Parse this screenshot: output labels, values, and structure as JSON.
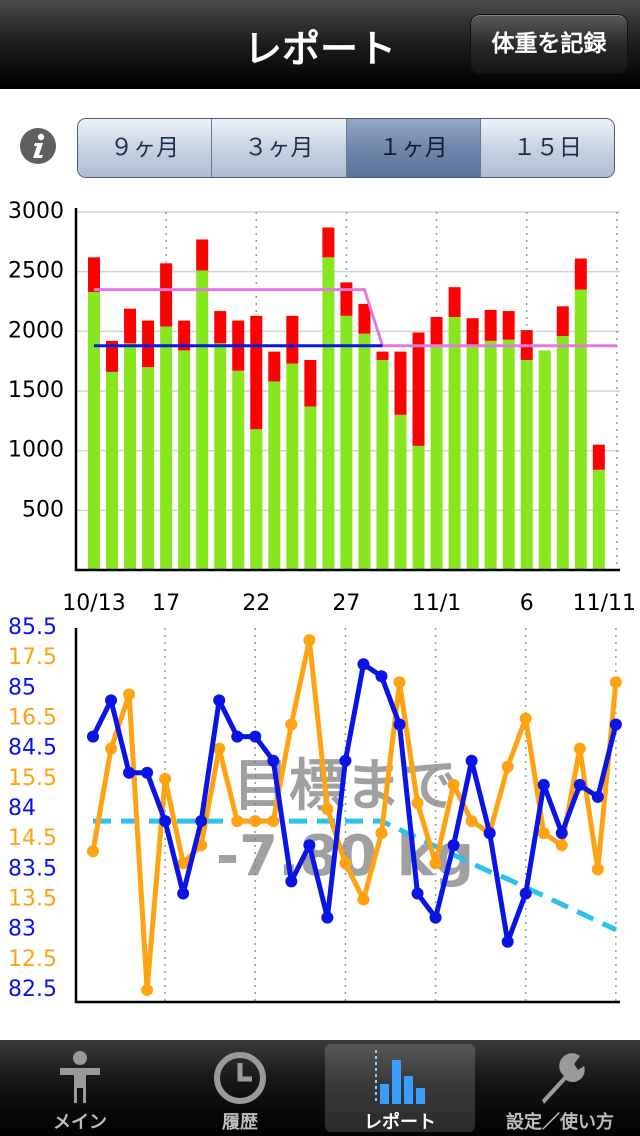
{
  "nav": {
    "title": "レポート",
    "button": "体重を記録"
  },
  "segments": {
    "items": [
      "９ヶ月",
      "３ヶ月",
      "１ヶ月",
      "１５日"
    ],
    "selected": 2
  },
  "tabs": {
    "items": [
      "メイン",
      "履歴",
      "レポート",
      "設定／使い方"
    ],
    "selected": 2
  },
  "chart_data": [
    {
      "type": "bar",
      "stacked": true,
      "categories": [
        "10/13",
        null,
        null,
        null,
        "17",
        null,
        null,
        null,
        null,
        "22",
        null,
        null,
        null,
        null,
        "27",
        null,
        null,
        null,
        null,
        "11/1",
        null,
        null,
        null,
        null,
        "6",
        null,
        null,
        null,
        null,
        "11/11"
      ],
      "series": [
        {
          "color": "#88e61e",
          "type": "bar",
          "values": [
            2330,
            1660,
            1900,
            1700,
            2040,
            1840,
            2510,
            1900,
            1670,
            1180,
            1580,
            1730,
            1370,
            2620,
            2130,
            1980,
            1760,
            1300,
            1040,
            1870,
            2120,
            1870,
            1920,
            1930,
            1760,
            1840,
            1960,
            2350,
            840,
            null
          ]
        },
        {
          "color": "#ff0000",
          "type": "bar",
          "values": [
            290,
            260,
            290,
            390,
            530,
            250,
            260,
            270,
            420,
            950,
            250,
            400,
            390,
            250,
            280,
            250,
            70,
            530,
            950,
            250,
            250,
            240,
            260,
            240,
            250,
            null,
            250,
            260,
            210,
            null
          ]
        },
        {
          "color": "#e27ae0",
          "type": "line",
          "values": [
            2350,
            2350,
            2350,
            2350,
            2350,
            2350,
            2350,
            2350,
            2350,
            2350,
            2350,
            2350,
            2350,
            2350,
            2350,
            2350,
            1880,
            1880,
            1880,
            1880,
            1880,
            1880,
            1880,
            1880,
            1880,
            1880,
            1880,
            1880,
            1880,
            1880
          ]
        },
        {
          "color": "#0a14e6",
          "type": "line",
          "values": [
            1880,
            1880,
            1880,
            1880,
            1880,
            1880,
            1880,
            1880,
            1880,
            1880,
            1880,
            1880,
            1880,
            1880,
            1880,
            1880,
            1880,
            null,
            null,
            null,
            null,
            null,
            null,
            null,
            null,
            null,
            null,
            null,
            null,
            null
          ]
        }
      ],
      "ylim": [
        0,
        3000
      ],
      "yticks": [
        500,
        1000,
        1500,
        2000,
        2500,
        3000
      ],
      "grid": true
    },
    {
      "type": "line",
      "annotations": [
        "目標まで",
        "-7.80 kg"
      ],
      "series": [
        {
          "color": "#29c3ea",
          "axis": "y",
          "dash": true,
          "markers": false,
          "values": [
            83.9,
            83.9,
            83.9,
            83.9,
            83.9,
            83.9,
            83.9,
            83.9,
            83.9,
            83.9,
            83.9,
            83.9,
            83.9,
            83.9,
            83.9,
            83.9,
            83.9,
            83.83,
            83.76,
            83.69,
            83.62,
            83.55,
            83.48,
            83.42,
            83.35,
            83.28,
            83.21,
            83.14,
            83.07,
            83.0
          ]
        },
        {
          "color": "#ffa312",
          "axis": "y2",
          "dash": false,
          "markers": true,
          "values": [
            14.3,
            16.0,
            16.9,
            12.0,
            15.5,
            14.1,
            14.4,
            16.0,
            14.8,
            14.8,
            14.8,
            16.4,
            17.8,
            15.0,
            14.1,
            13.5,
            14.6,
            17.1,
            15.1,
            14.1,
            15.4,
            14.8,
            14.6,
            15.7,
            16.5,
            14.6,
            14.4,
            16.0,
            14.0,
            17.1
          ]
        },
        {
          "color": "#0a14e6",
          "axis": "y",
          "dash": false,
          "markers": true,
          "values": [
            84.6,
            84.9,
            84.3,
            84.3,
            83.9,
            83.3,
            83.9,
            84.9,
            84.6,
            84.6,
            84.4,
            83.4,
            83.7,
            83.1,
            84.4,
            85.2,
            85.1,
            84.7,
            83.3,
            83.1,
            83.7,
            84.4,
            83.8,
            82.9,
            83.3,
            84.2,
            83.8,
            84.2,
            84.1,
            84.7
          ]
        }
      ],
      "ylim": [
        82.5,
        85.5
      ],
      "yticks": [
        82.5,
        83,
        83.5,
        84,
        84.5,
        85,
        85.5
      ],
      "y2lim": [
        12,
        18
      ],
      "y2ticks": [
        12.5,
        13.5,
        14.5,
        15.5,
        16.5,
        17.5
      ],
      "grid": true
    }
  ]
}
